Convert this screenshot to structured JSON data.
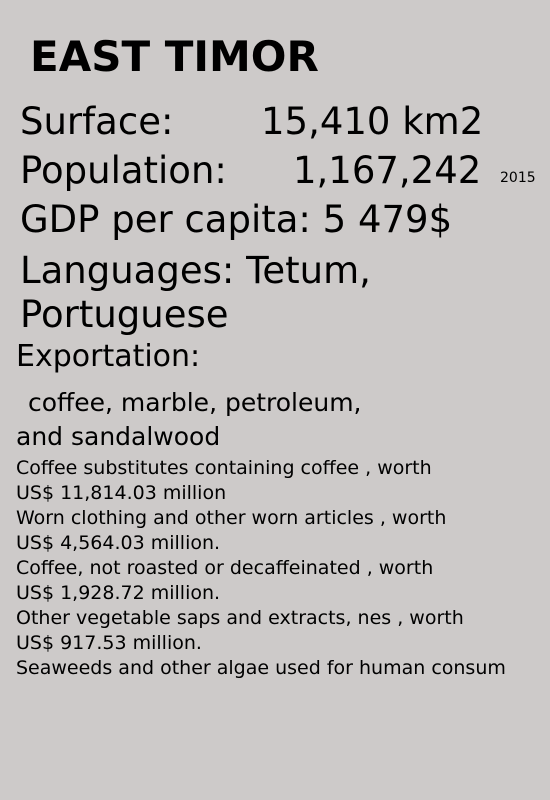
{
  "country": "EAST TIMOR",
  "surface": {
    "label": "Surface:",
    "value": "15,410 km2"
  },
  "population": {
    "label": "Population:",
    "value": "1,167,242",
    "year": "2015"
  },
  "gdp": "GDP per capita:  5 479$",
  "languages": {
    "line1": "Languages: Tetum,",
    "line2": "Portuguese"
  },
  "exportation": {
    "heading": "Exportation:",
    "goods_line1": "coffee, marble, petroleum,",
    "goods_line2": "and sandalwood",
    "lines": [
      "Coffee substitutes containing coffee , worth",
      "US$ 11,814.03 million",
      "Worn clothing and other worn articles , worth",
      "US$ 4,564.03 million.",
      "Coffee, not roasted or decaffeinated , worth",
      "US$ 1,928.72 million.",
      "Other vegetable saps and extracts, nes , worth",
      "US$ 917.53 million.",
      "Seaweeds and other algae used for human consum"
    ]
  }
}
